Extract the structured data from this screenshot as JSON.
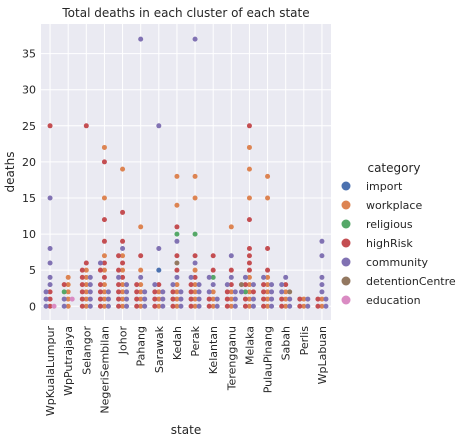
{
  "chart_data": {
    "type": "scatter",
    "title": "Total deaths in each cluster of each state",
    "xlabel": "state",
    "ylabel": "deaths",
    "ylim": [
      -1.9,
      39.1
    ],
    "yticks": [
      0,
      5,
      10,
      15,
      20,
      25,
      30,
      35
    ],
    "grid": true,
    "legend_position": "right",
    "legend_title": "category",
    "categories": [
      "WpKualaLumpur",
      "WpPutrajaya",
      "Selangor",
      "NegeriSembilan",
      "Johor",
      "Pahang",
      "Sarawak",
      "Kedah",
      "Perak",
      "Kelantan",
      "Terengganu",
      "Melaka",
      "PulauPinang",
      "Sabah",
      "Perlis",
      "WpLabuan"
    ],
    "series": [
      {
        "name": "import",
        "color": "#4c72b0",
        "points": [
          [
            "Sarawak",
            5
          ]
        ]
      },
      {
        "name": "workplace",
        "color": "#dd8452",
        "points": [
          [
            "WpPutrajaya",
            0
          ],
          [
            "WpPutrajaya",
            1
          ],
          [
            "WpPutrajaya",
            2
          ],
          [
            "WpPutrajaya",
            3
          ],
          [
            "WpPutrajaya",
            4
          ],
          [
            "Selangor",
            0
          ],
          [
            "Selangor",
            1
          ],
          [
            "Selangor",
            2
          ],
          [
            "Selangor",
            3
          ],
          [
            "Selangor",
            4
          ],
          [
            "Selangor",
            5
          ],
          [
            "NegeriSembilan",
            0
          ],
          [
            "NegeriSembilan",
            1
          ],
          [
            "NegeriSembilan",
            2
          ],
          [
            "NegeriSembilan",
            3
          ],
          [
            "NegeriSembilan",
            5
          ],
          [
            "NegeriSembilan",
            7
          ],
          [
            "NegeriSembilan",
            15
          ],
          [
            "NegeriSembilan",
            22
          ],
          [
            "Johor",
            0
          ],
          [
            "Johor",
            1
          ],
          [
            "Johor",
            2
          ],
          [
            "Johor",
            3
          ],
          [
            "Johor",
            5
          ],
          [
            "Johor",
            7
          ],
          [
            "Johor",
            19
          ],
          [
            "Pahang",
            0
          ],
          [
            "Pahang",
            1
          ],
          [
            "Pahang",
            2
          ],
          [
            "Pahang",
            3
          ],
          [
            "Pahang",
            5
          ],
          [
            "Pahang",
            11
          ],
          [
            "Sarawak",
            0
          ],
          [
            "Sarawak",
            1
          ],
          [
            "Sarawak",
            2
          ],
          [
            "Kedah",
            0
          ],
          [
            "Kedah",
            1
          ],
          [
            "Kedah",
            2
          ],
          [
            "Kedah",
            3
          ],
          [
            "Kedah",
            14
          ],
          [
            "Kedah",
            18
          ],
          [
            "Perak",
            0
          ],
          [
            "Perak",
            1
          ],
          [
            "Perak",
            2
          ],
          [
            "Perak",
            3
          ],
          [
            "Perak",
            5
          ],
          [
            "Perak",
            15
          ],
          [
            "Perak",
            18
          ],
          [
            "Kelantan",
            0
          ],
          [
            "Kelantan",
            1
          ],
          [
            "Kelantan",
            2
          ],
          [
            "Terengganu",
            0
          ],
          [
            "Terengganu",
            1
          ],
          [
            "Terengganu",
            2
          ],
          [
            "Terengganu",
            11
          ],
          [
            "Melaka",
            0
          ],
          [
            "Melaka",
            1
          ],
          [
            "Melaka",
            2
          ],
          [
            "Melaka",
            3
          ],
          [
            "Melaka",
            4
          ],
          [
            "Melaka",
            15
          ],
          [
            "Melaka",
            19
          ],
          [
            "Melaka",
            22
          ],
          [
            "PulauPinang",
            0
          ],
          [
            "PulauPinang",
            1
          ],
          [
            "PulauPinang",
            2
          ],
          [
            "PulauPinang",
            3
          ],
          [
            "PulauPinang",
            4
          ],
          [
            "PulauPinang",
            15
          ],
          [
            "PulauPinang",
            18
          ],
          [
            "Sabah",
            0
          ],
          [
            "Sabah",
            1
          ],
          [
            "Sabah",
            2
          ],
          [
            "Perlis",
            0
          ],
          [
            "Perlis",
            1
          ],
          [
            "WpLabuan",
            0
          ],
          [
            "WpLabuan",
            1
          ]
        ]
      },
      {
        "name": "religious",
        "color": "#55a868",
        "points": [
          [
            "WpPutrajaya",
            2
          ],
          [
            "Kedah",
            10
          ],
          [
            "Perak",
            10
          ],
          [
            "Kelantan",
            4
          ],
          [
            "Melaka",
            2
          ]
        ]
      },
      {
        "name": "highRisk",
        "color": "#c44e52",
        "points": [
          [
            "WpKualaLumpur",
            0
          ],
          [
            "WpKualaLumpur",
            1
          ],
          [
            "WpKualaLumpur",
            2
          ],
          [
            "WpKualaLumpur",
            25
          ],
          [
            "WpPutrajaya",
            3
          ],
          [
            "Selangor",
            0
          ],
          [
            "Selangor",
            1
          ],
          [
            "Selangor",
            2
          ],
          [
            "Selangor",
            3
          ],
          [
            "Selangor",
            4
          ],
          [
            "Selangor",
            5
          ],
          [
            "Selangor",
            6
          ],
          [
            "Selangor",
            25
          ],
          [
            "NegeriSembilan",
            0
          ],
          [
            "NegeriSembilan",
            1
          ],
          [
            "NegeriSembilan",
            2
          ],
          [
            "NegeriSembilan",
            3
          ],
          [
            "NegeriSembilan",
            4
          ],
          [
            "NegeriSembilan",
            5
          ],
          [
            "NegeriSembilan",
            6
          ],
          [
            "NegeriSembilan",
            9
          ],
          [
            "NegeriSembilan",
            12
          ],
          [
            "NegeriSembilan",
            20
          ],
          [
            "Johor",
            0
          ],
          [
            "Johor",
            1
          ],
          [
            "Johor",
            2
          ],
          [
            "Johor",
            3
          ],
          [
            "Johor",
            4
          ],
          [
            "Johor",
            5
          ],
          [
            "Johor",
            6
          ],
          [
            "Johor",
            7
          ],
          [
            "Johor",
            9
          ],
          [
            "Johor",
            13
          ],
          [
            "Pahang",
            0
          ],
          [
            "Pahang",
            1
          ],
          [
            "Pahang",
            2
          ],
          [
            "Pahang",
            3
          ],
          [
            "Pahang",
            7
          ],
          [
            "Sarawak",
            0
          ],
          [
            "Sarawak",
            1
          ],
          [
            "Sarawak",
            2
          ],
          [
            "Sarawak",
            3
          ],
          [
            "Kedah",
            0
          ],
          [
            "Kedah",
            1
          ],
          [
            "Kedah",
            2
          ],
          [
            "Kedah",
            5
          ],
          [
            "Kedah",
            7
          ],
          [
            "Kedah",
            11
          ],
          [
            "Perak",
            0
          ],
          [
            "Perak",
            1
          ],
          [
            "Perak",
            2
          ],
          [
            "Perak",
            3
          ],
          [
            "Perak",
            4
          ],
          [
            "Perak",
            7
          ],
          [
            "Kelantan",
            0
          ],
          [
            "Kelantan",
            1
          ],
          [
            "Kelantan",
            5
          ],
          [
            "Kelantan",
            7
          ],
          [
            "Terengganu",
            0
          ],
          [
            "Terengganu",
            1
          ],
          [
            "Terengganu",
            2
          ],
          [
            "Terengganu",
            3
          ],
          [
            "Terengganu",
            5
          ],
          [
            "Melaka",
            0
          ],
          [
            "Melaka",
            1
          ],
          [
            "Melaka",
            2
          ],
          [
            "Melaka",
            3
          ],
          [
            "Melaka",
            5
          ],
          [
            "Melaka",
            6
          ],
          [
            "Melaka",
            7
          ],
          [
            "Melaka",
            8
          ],
          [
            "Melaka",
            12
          ],
          [
            "Melaka",
            25
          ],
          [
            "PulauPinang",
            0
          ],
          [
            "PulauPinang",
            1
          ],
          [
            "PulauPinang",
            2
          ],
          [
            "PulauPinang",
            3
          ],
          [
            "PulauPinang",
            5
          ],
          [
            "PulauPinang",
            8
          ],
          [
            "Sabah",
            0
          ],
          [
            "Sabah",
            1
          ],
          [
            "Sabah",
            3
          ],
          [
            "Perlis",
            0
          ],
          [
            "Perlis",
            1
          ],
          [
            "WpLabuan",
            0
          ],
          [
            "WpLabuan",
            1
          ]
        ]
      },
      {
        "name": "community",
        "color": "#8172b3",
        "points": [
          [
            "WpKualaLumpur",
            0
          ],
          [
            "WpKualaLumpur",
            1
          ],
          [
            "WpKualaLumpur",
            2
          ],
          [
            "WpKualaLumpur",
            3
          ],
          [
            "WpKualaLumpur",
            4
          ],
          [
            "WpKualaLumpur",
            6
          ],
          [
            "WpKualaLumpur",
            8
          ],
          [
            "WpKualaLumpur",
            15
          ],
          [
            "WpPutrajaya",
            0
          ],
          [
            "WpPutrajaya",
            1
          ],
          [
            "Selangor",
            0
          ],
          [
            "Selangor",
            1
          ],
          [
            "Selangor",
            2
          ],
          [
            "Selangor",
            3
          ],
          [
            "Selangor",
            4
          ],
          [
            "NegeriSembilan",
            0
          ],
          [
            "NegeriSembilan",
            1
          ],
          [
            "NegeriSembilan",
            2
          ],
          [
            "NegeriSembilan",
            6
          ],
          [
            "Johor",
            0
          ],
          [
            "Johor",
            1
          ],
          [
            "Johor",
            2
          ],
          [
            "Johor",
            3
          ],
          [
            "Johor",
            4
          ],
          [
            "Johor",
            8
          ],
          [
            "Pahang",
            0
          ],
          [
            "Pahang",
            1
          ],
          [
            "Pahang",
            2
          ],
          [
            "Pahang",
            4
          ],
          [
            "Pahang",
            37
          ],
          [
            "Sarawak",
            0
          ],
          [
            "Sarawak",
            1
          ],
          [
            "Sarawak",
            2
          ],
          [
            "Sarawak",
            3
          ],
          [
            "Sarawak",
            8
          ],
          [
            "Sarawak",
            25
          ],
          [
            "Kedah",
            0
          ],
          [
            "Kedah",
            1
          ],
          [
            "Kedah",
            2
          ],
          [
            "Kedah",
            3
          ],
          [
            "Kedah",
            4
          ],
          [
            "Kedah",
            9
          ],
          [
            "Perak",
            0
          ],
          [
            "Perak",
            1
          ],
          [
            "Perak",
            2
          ],
          [
            "Perak",
            3
          ],
          [
            "Perak",
            4
          ],
          [
            "Perak",
            6
          ],
          [
            "Perak",
            37
          ],
          [
            "Kelantan",
            0
          ],
          [
            "Kelantan",
            1
          ],
          [
            "Kelantan",
            2
          ],
          [
            "Kelantan",
            3
          ],
          [
            "Kelantan",
            4
          ],
          [
            "Terengganu",
            0
          ],
          [
            "Terengganu",
            1
          ],
          [
            "Terengganu",
            2
          ],
          [
            "Terengganu",
            3
          ],
          [
            "Terengganu",
            4
          ],
          [
            "Terengganu",
            7
          ],
          [
            "Melaka",
            0
          ],
          [
            "Melaka",
            1
          ],
          [
            "Melaka",
            2
          ],
          [
            "Melaka",
            3
          ],
          [
            "Melaka",
            4
          ],
          [
            "PulauPinang",
            0
          ],
          [
            "PulauPinang",
            1
          ],
          [
            "PulauPinang",
            2
          ],
          [
            "PulauPinang",
            3
          ],
          [
            "PulauPinang",
            4
          ],
          [
            "Sabah",
            0
          ],
          [
            "Sabah",
            1
          ],
          [
            "Sabah",
            2
          ],
          [
            "Sabah",
            3
          ],
          [
            "Sabah",
            4
          ],
          [
            "Perlis",
            0
          ],
          [
            "Perlis",
            1
          ],
          [
            "WpLabuan",
            0
          ],
          [
            "WpLabuan",
            1
          ],
          [
            "WpLabuan",
            2
          ],
          [
            "WpLabuan",
            3
          ],
          [
            "WpLabuan",
            4
          ],
          [
            "WpLabuan",
            7
          ],
          [
            "WpLabuan",
            9
          ]
        ]
      },
      {
        "name": "detentionCentre",
        "color": "#937860",
        "points": [
          [
            "Kedah",
            6
          ],
          [
            "Melaka",
            3
          ],
          [
            "Sabah",
            2
          ]
        ]
      },
      {
        "name": "education",
        "color": "#da8bc3",
        "points": [
          [
            "WpKualaLumpur",
            0
          ],
          [
            "WpPutrajaya",
            1
          ]
        ]
      }
    ]
  }
}
